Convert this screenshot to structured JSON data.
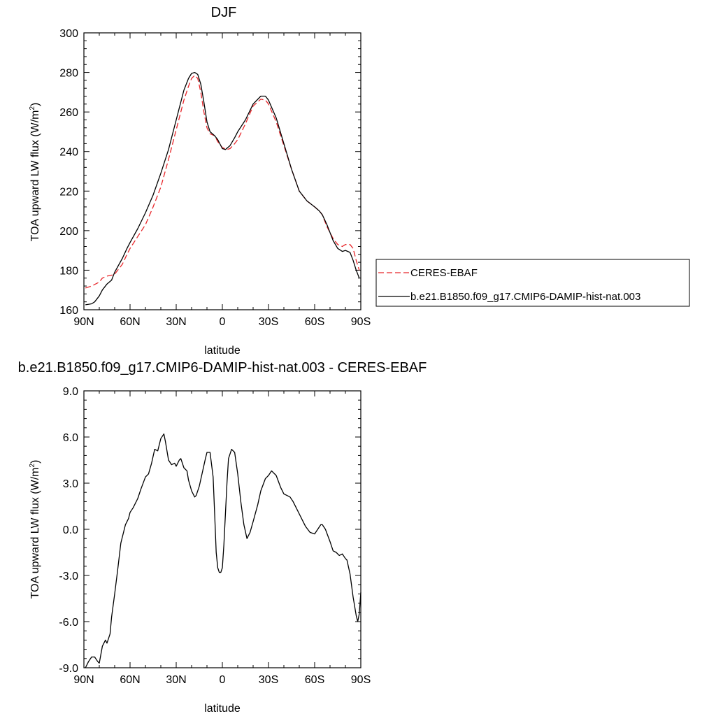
{
  "chart_data": [
    {
      "type": "line",
      "title": "DJF",
      "xlabel": "latitude",
      "ylabel": "TOA upward LW flux (W/m",
      "ylabel_sup": "2",
      "ylabel_close": ")",
      "xlim": [
        90,
        -90
      ],
      "ylim": [
        160,
        300
      ],
      "x_ticks": [
        90,
        60,
        30,
        0,
        -30,
        -60,
        -90
      ],
      "x_tick_labels": [
        "90N",
        "60N",
        "30N",
        "0",
        "30S",
        "60S",
        "90S"
      ],
      "y_ticks": [
        160,
        180,
        200,
        220,
        240,
        260,
        280,
        300
      ],
      "y_tick_labels": [
        "160",
        "180",
        "200",
        "220",
        "240",
        "260",
        "280",
        "300"
      ],
      "legend": "outside-right",
      "series": [
        {
          "name": "CERES-EBAF",
          "color": "#e8262a",
          "dash": "dashed",
          "x": [
            89,
            85,
            80,
            78,
            75,
            72,
            70,
            65,
            62,
            60,
            55,
            50,
            45,
            40,
            35,
            30,
            25,
            22,
            20,
            18,
            16,
            14,
            12,
            10,
            8,
            5,
            3,
            0,
            -3,
            -5,
            -8,
            -10,
            -15,
            -20,
            -25,
            -28,
            -30,
            -35,
            -40,
            -45,
            -50,
            -55,
            -60,
            -63,
            -65,
            -68,
            -70,
            -72,
            -75,
            -78,
            -80,
            -83,
            -85,
            -87,
            -89
          ],
          "y": [
            171,
            172,
            174,
            176,
            177,
            177.5,
            178,
            183,
            188,
            191,
            197,
            203,
            212,
            222,
            236,
            251,
            266,
            273,
            277,
            278.5,
            277,
            270,
            260,
            252,
            249,
            248,
            245,
            242,
            241,
            241.5,
            244,
            246,
            254,
            263,
            266.5,
            266,
            264,
            255,
            243,
            231,
            220,
            215,
            212,
            210,
            208,
            202,
            199,
            196,
            193,
            192,
            193,
            193,
            191,
            185,
            180
          ]
        },
        {
          "name": "b.e21.B1850.f09_g17.CMIP6-DAMIP-hist-nat.003",
          "color": "#000000",
          "dash": "solid",
          "x": [
            89,
            85,
            83,
            80,
            78,
            75,
            72,
            70,
            65,
            62,
            60,
            55,
            50,
            45,
            40,
            35,
            30,
            25,
            22,
            20,
            18,
            16,
            14,
            12,
            10,
            8,
            5,
            3,
            0,
            -2,
            -5,
            -8,
            -10,
            -15,
            -20,
            -25,
            -28,
            -30,
            -35,
            -40,
            -45,
            -50,
            -55,
            -60,
            -63,
            -65,
            -68,
            -70,
            -72,
            -75,
            -78,
            -80,
            -83,
            -85,
            -87,
            -89
          ],
          "y": [
            162.5,
            163,
            164,
            167,
            170,
            173,
            175,
            179,
            186,
            191,
            194,
            201,
            209,
            218,
            229,
            241,
            256,
            271,
            277,
            279.5,
            280,
            279,
            274,
            265,
            255,
            250,
            248,
            246,
            241.5,
            241,
            243,
            247,
            250,
            256,
            264,
            268,
            268,
            266,
            257,
            244,
            231,
            220,
            215,
            212,
            210,
            208,
            203,
            199,
            195,
            191,
            189.5,
            190,
            189,
            185,
            180,
            176
          ]
        }
      ]
    },
    {
      "type": "line",
      "title": "b.e21.B1850.f09_g17.CMIP6-DAMIP-hist-nat.003 - CERES-EBAF",
      "xlabel": "latitude",
      "ylabel": "TOA upward LW flux (W/m",
      "ylabel_sup": "2",
      "ylabel_close": ")",
      "xlim": [
        90,
        -90
      ],
      "ylim": [
        -9,
        9
      ],
      "x_ticks": [
        90,
        60,
        30,
        0,
        -30,
        -60,
        -90
      ],
      "x_tick_labels": [
        "90N",
        "60N",
        "30N",
        "0",
        "30S",
        "60S",
        "90S"
      ],
      "y_ticks": [
        -9,
        -6,
        -3,
        0,
        3,
        6,
        9
      ],
      "y_tick_labels": [
        "-9.0",
        "-6.0",
        "-3.0",
        "0.0",
        "3.0",
        "6.0",
        "9.0"
      ],
      "series": [
        {
          "name": "",
          "color": "#000000",
          "dash": "solid",
          "x": [
            89,
            87,
            85,
            83,
            81,
            80,
            78,
            76,
            75,
            73,
            72,
            70,
            68,
            66,
            65,
            63,
            61,
            60,
            58,
            55,
            53,
            50,
            48,
            46,
            44,
            42,
            40,
            38,
            37,
            35,
            33,
            31,
            30,
            28,
            27,
            25,
            23,
            22,
            20,
            18,
            17,
            15,
            13,
            11,
            10,
            8,
            6,
            5,
            4,
            3,
            2,
            1,
            0,
            -1,
            -2,
            -3,
            -4,
            -6,
            -8,
            -10,
            -12,
            -14,
            -16,
            -18,
            -20,
            -23,
            -25,
            -28,
            -30,
            -32,
            -35,
            -38,
            -40,
            -42,
            -44,
            -46,
            -48,
            -50,
            -52,
            -54,
            -57,
            -60,
            -62,
            -64,
            -65,
            -67,
            -70,
            -72,
            -74,
            -76,
            -78,
            -80,
            -81,
            -83,
            -85,
            -87,
            -88,
            -89,
            -90
          ],
          "y": [
            -9,
            -8.6,
            -8.3,
            -8.3,
            -8.6,
            -8.7,
            -7.6,
            -7.2,
            -7.4,
            -6.8,
            -5.7,
            -4.2,
            -2.6,
            -0.9,
            -0.5,
            0.3,
            0.7,
            1.1,
            1.4,
            2.0,
            2.6,
            3.4,
            3.6,
            4.3,
            5.2,
            5.1,
            5.9,
            6.2,
            5.7,
            4.5,
            4.2,
            4.3,
            4.1,
            4.5,
            4.6,
            4.0,
            3.8,
            3.2,
            2.5,
            2.1,
            2.2,
            2.8,
            3.7,
            4.6,
            5.0,
            5.0,
            3.4,
            1.0,
            -1.5,
            -2.5,
            -2.8,
            -2.8,
            -2.5,
            -1.0,
            1.0,
            3.0,
            4.6,
            5.2,
            5.0,
            3.6,
            1.8,
            0.3,
            -0.6,
            -0.2,
            0.5,
            1.6,
            2.5,
            3.3,
            3.5,
            3.8,
            3.5,
            2.7,
            2.3,
            2.2,
            2.1,
            1.8,
            1.4,
            1.0,
            0.6,
            0.2,
            -0.2,
            -0.3,
            0.0,
            0.3,
            0.3,
            0.0,
            -0.8,
            -1.4,
            -1.5,
            -1.7,
            -1.6,
            -1.9,
            -2.0,
            -2.9,
            -4.4,
            -5.6,
            -6.0,
            -5.5,
            -4.1
          ]
        }
      ]
    }
  ]
}
